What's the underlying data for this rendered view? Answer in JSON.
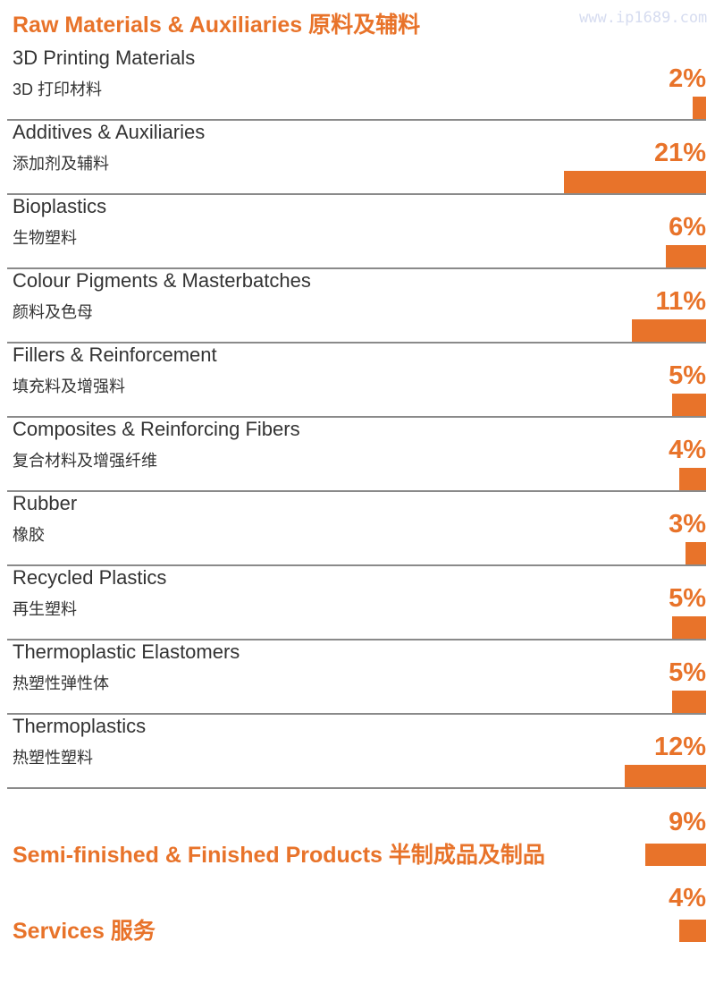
{
  "watermark": "www.ip1689.com",
  "chart_data": {
    "type": "bar",
    "orientation": "horizontal",
    "title": "Raw Materials & Auxiliaries 原料及辅料",
    "unit": "%",
    "color": "#e8732a",
    "categories": [
      {
        "en": "3D Printing Materials",
        "cn": "3D 打印材料",
        "value": 2,
        "label": "2%"
      },
      {
        "en": "Additives & Auxiliaries",
        "cn": "添加剂及辅料",
        "value": 21,
        "label": "21%"
      },
      {
        "en": "Bioplastics",
        "cn": "生物塑料",
        "value": 6,
        "label": "6%"
      },
      {
        "en": "Colour Pigments & Masterbatches",
        "cn": "颜料及色母",
        "value": 11,
        "label": "11%"
      },
      {
        "en": "Fillers & Reinforcement",
        "cn": "填充料及增强料",
        "value": 5,
        "label": "5%"
      },
      {
        "en": "Composites & Reinforcing Fibers",
        "cn": "复合材料及增强纤维",
        "value": 4,
        "label": "4%"
      },
      {
        "en": "Rubber",
        "cn": "橡胶",
        "value": 3,
        "label": "3%"
      },
      {
        "en": "Recycled Plastics",
        "cn": "再生塑料",
        "value": 5,
        "label": "5%"
      },
      {
        "en": "Thermoplastic Elastomers",
        "cn": "热塑性弹性体",
        "value": 5,
        "label": "5%"
      },
      {
        "en": "Thermoplastics",
        "cn": "热塑性塑料",
        "value": 12,
        "label": "12%"
      }
    ],
    "groups": [
      {
        "name": "Semi-finished & Finished Products 半制成品及制品",
        "value": 9,
        "label": "9%"
      },
      {
        "name": "Services 服务",
        "value": 4,
        "label": "4%"
      }
    ]
  }
}
